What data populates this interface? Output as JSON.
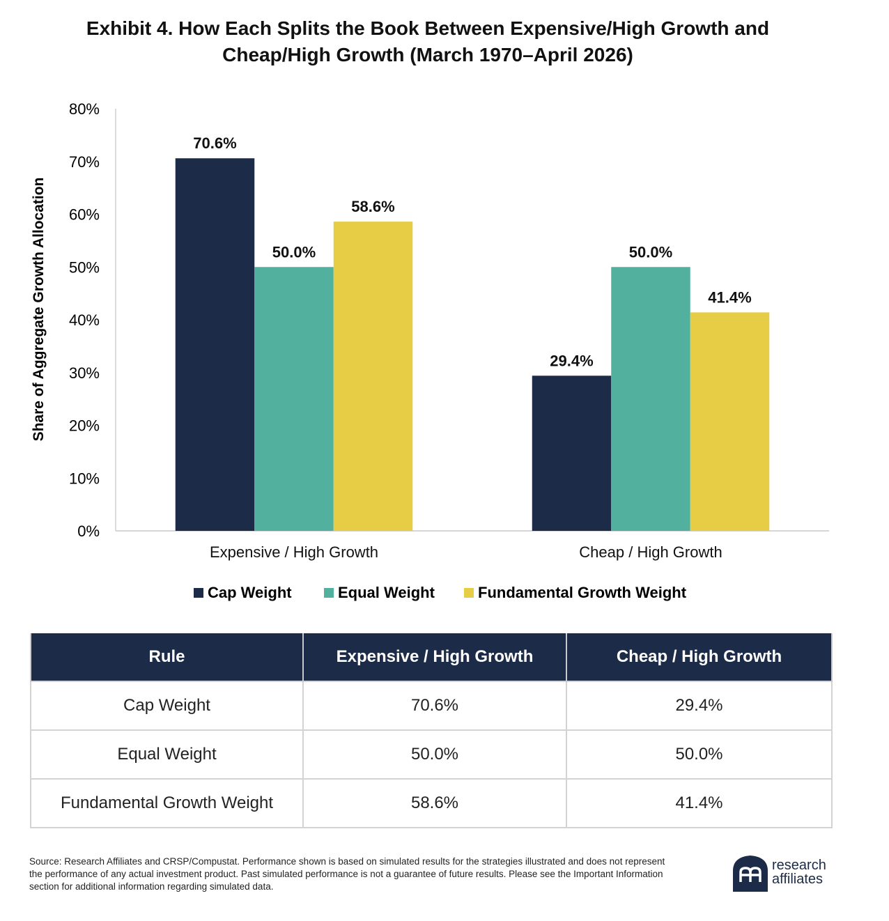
{
  "title_line1": "Exhibit 4. How Each Splits the Book Between Expensive/High Growth and",
  "title_line2": "Cheap/High Growth (March 1970–April 2026)",
  "chart_data": {
    "type": "bar",
    "title": "Exhibit 4. How Each Splits the Book Between Expensive/High Growth and Cheap/High Growth (March 1970–April 2026)",
    "ylabel": "Share of Aggregate Growth Allocation",
    "xlabel": "",
    "ylim": [
      0,
      80
    ],
    "yticks": [
      "0%",
      "10%",
      "20%",
      "30%",
      "40%",
      "50%",
      "60%",
      "70%",
      "80%"
    ],
    "categories": [
      "Expensive / High Growth",
      "Cheap / High Growth"
    ],
    "series": [
      {
        "name": "Cap Weight",
        "color": "#1c2b47",
        "values": [
          70.6,
          29.4
        ],
        "labels": [
          "70.6%",
          "29.4%"
        ]
      },
      {
        "name": "Equal Weight",
        "color": "#52b09e",
        "values": [
          50.0,
          50.0
        ],
        "labels": [
          "50.0%",
          "50.0%"
        ]
      },
      {
        "name": "Fundamental Growth Weight",
        "color": "#e6cd45",
        "values": [
          58.6,
          41.4
        ],
        "labels": [
          "58.6%",
          "41.4%"
        ]
      }
    ],
    "grid": false,
    "legend_position": "bottom"
  },
  "table": {
    "headers": [
      "Rule",
      "Expensive / High Growth",
      "Cheap / High Growth"
    ],
    "rows": [
      [
        "Cap Weight",
        "70.6%",
        "29.4%"
      ],
      [
        "Equal Weight",
        "50.0%",
        "50.0%"
      ],
      [
        "Fundamental Growth Weight",
        "58.6%",
        "41.4%"
      ]
    ]
  },
  "source": "Source: Research Affiliates and CRSP/Compustat. Performance shown is based on simulated results for the strategies illustrated and does not represent the performance of any actual investment product. Past simulated performance is not a guarantee of future results. Please see the Important Information section for additional information regarding simulated data.",
  "logo": {
    "line1": "research",
    "line2": "affiliates",
    "color": "#1c2b47"
  }
}
